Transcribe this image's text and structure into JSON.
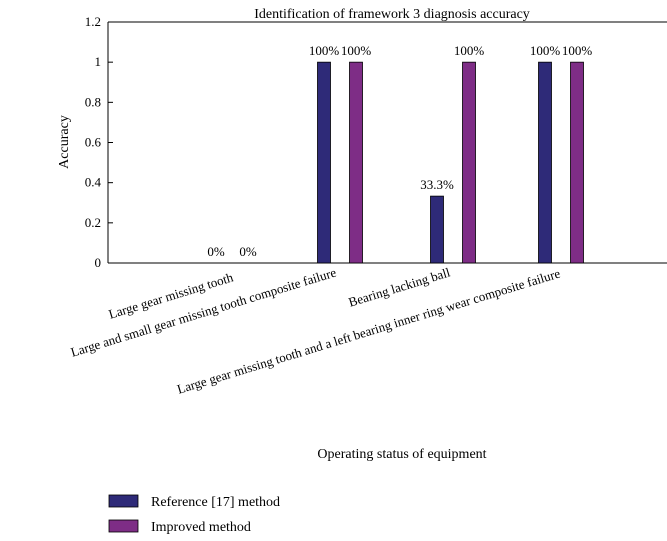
{
  "chart_data": {
    "type": "bar",
    "title": "Identification of framework 3 diagnosis accuracy",
    "xlabel": "Operating status of equipment",
    "ylabel": "Accuracy",
    "ylim": [
      0,
      1.2
    ],
    "yticks": [
      "0",
      "0.2",
      "0.4",
      "0.6",
      "0.8",
      "1",
      "1.2"
    ],
    "categories": [
      "Large gear missing tooth",
      "Large and small gear missing tooth composite failure",
      "Bearing lacking ball",
      "Large gear missing tooth and a left bearing inner ring wear composite failure"
    ],
    "series": [
      {
        "name": "Reference [17] method",
        "color": "#2e2a78",
        "values": [
          0,
          1,
          0.333,
          1
        ],
        "labels": [
          "0%",
          "100%",
          "33.3%",
          "100%"
        ]
      },
      {
        "name": "Improved method",
        "color": "#7e2d86",
        "values": [
          0,
          1,
          1,
          1
        ],
        "labels": [
          "0%",
          "100%",
          "100%",
          "100%"
        ]
      }
    ],
    "grid": false,
    "legend_position": "bottom-left"
  }
}
